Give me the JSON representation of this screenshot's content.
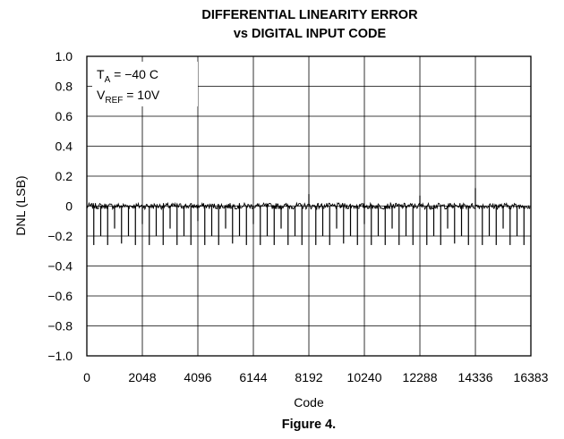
{
  "chart_data": {
    "type": "line",
    "title_line1": "DIFFERENTIAL LINEARITY ERROR",
    "title_line2": "vs DIGITAL INPUT CODE",
    "xlabel": "Code",
    "ylabel": "DNL (LSB)",
    "xlim": [
      0,
      16383
    ],
    "ylim": [
      -1.0,
      1.0
    ],
    "x_ticks": [
      0,
      2048,
      4096,
      6144,
      8192,
      10240,
      12288,
      14336,
      16383
    ],
    "x_tick_labels": [
      "0",
      "2048",
      "4096",
      "6144",
      "8192",
      "10240",
      "12288",
      "14336",
      "16383"
    ],
    "y_ticks": [
      1.0,
      0.8,
      0.6,
      0.4,
      0.2,
      0,
      -0.2,
      -0.4,
      -0.6,
      -0.8,
      -1.0
    ],
    "y_tick_labels": [
      "1.0",
      "0.8",
      "0.6",
      "0.4",
      "0.2",
      "0",
      "−0.2",
      "−0.4",
      "−0.6",
      "−0.8",
      "−1.0"
    ],
    "grid": true,
    "series": [
      {
        "noise_band": [
          -0.02,
          0.02
        ],
        "spikes": [
          {
            "code": 256,
            "value": -0.26
          },
          {
            "code": 512,
            "value": -0.2
          },
          {
            "code": 768,
            "value": -0.26
          },
          {
            "code": 1024,
            "value": -0.15
          },
          {
            "code": 1280,
            "value": -0.25
          },
          {
            "code": 1536,
            "value": -0.2
          },
          {
            "code": 1792,
            "value": -0.26
          },
          {
            "code": 2048,
            "value": -0.12
          },
          {
            "code": 2304,
            "value": -0.26
          },
          {
            "code": 2560,
            "value": -0.2
          },
          {
            "code": 2816,
            "value": -0.26
          },
          {
            "code": 3072,
            "value": -0.15
          },
          {
            "code": 3328,
            "value": -0.26
          },
          {
            "code": 3584,
            "value": -0.2
          },
          {
            "code": 3840,
            "value": -0.26
          },
          {
            "code": 4096,
            "value": -0.1
          },
          {
            "code": 4352,
            "value": -0.26
          },
          {
            "code": 4608,
            "value": -0.2
          },
          {
            "code": 4864,
            "value": -0.26
          },
          {
            "code": 5120,
            "value": -0.15
          },
          {
            "code": 5376,
            "value": -0.25
          },
          {
            "code": 5632,
            "value": -0.2
          },
          {
            "code": 5888,
            "value": -0.26
          },
          {
            "code": 6144,
            "value": -0.12
          },
          {
            "code": 6400,
            "value": -0.26
          },
          {
            "code": 6656,
            "value": -0.2
          },
          {
            "code": 6912,
            "value": -0.26
          },
          {
            "code": 7168,
            "value": -0.15
          },
          {
            "code": 7424,
            "value": -0.26
          },
          {
            "code": 7680,
            "value": -0.2
          },
          {
            "code": 7936,
            "value": -0.26
          },
          {
            "code": 8192,
            "value": 0.08
          },
          {
            "code": 8448,
            "value": -0.26
          },
          {
            "code": 8704,
            "value": -0.2
          },
          {
            "code": 8960,
            "value": -0.26
          },
          {
            "code": 9216,
            "value": -0.15
          },
          {
            "code": 9472,
            "value": -0.25
          },
          {
            "code": 9728,
            "value": -0.2
          },
          {
            "code": 9984,
            "value": -0.26
          },
          {
            "code": 10240,
            "value": -0.12
          },
          {
            "code": 10496,
            "value": -0.26
          },
          {
            "code": 10752,
            "value": -0.2
          },
          {
            "code": 11008,
            "value": -0.26
          },
          {
            "code": 11264,
            "value": -0.15
          },
          {
            "code": 11520,
            "value": -0.26
          },
          {
            "code": 11776,
            "value": -0.2
          },
          {
            "code": 12032,
            "value": -0.26
          },
          {
            "code": 12288,
            "value": 0.07
          },
          {
            "code": 12544,
            "value": -0.26
          },
          {
            "code": 12800,
            "value": -0.2
          },
          {
            "code": 13056,
            "value": -0.26
          },
          {
            "code": 13312,
            "value": -0.15
          },
          {
            "code": 13568,
            "value": -0.25
          },
          {
            "code": 13824,
            "value": -0.2
          },
          {
            "code": 14080,
            "value": -0.26
          },
          {
            "code": 14336,
            "value": 0.12
          },
          {
            "code": 14592,
            "value": -0.26
          },
          {
            "code": 14848,
            "value": -0.2
          },
          {
            "code": 15104,
            "value": -0.26
          },
          {
            "code": 15360,
            "value": -0.15
          },
          {
            "code": 15616,
            "value": -0.26
          },
          {
            "code": 15872,
            "value": -0.2
          },
          {
            "code": 16128,
            "value": -0.26
          }
        ]
      }
    ],
    "legend": {
      "placement": "top-left",
      "line1_main": "T",
      "line1_sub": "A",
      "line1_rest": " = −40 C",
      "line2_main": "V",
      "line2_sub": "REF",
      "line2_rest": " = 10V"
    }
  },
  "caption": "Figure 4."
}
